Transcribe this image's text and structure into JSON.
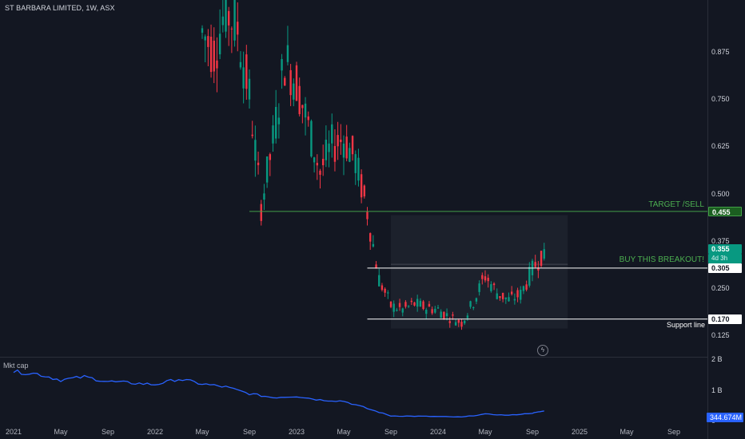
{
  "header": {
    "title": "ST BARBARA LIMITED, 1W, ASX"
  },
  "panes": {
    "market_cap_label": "Mkt cap"
  },
  "colors": {
    "background": "#131722",
    "up": "#089981",
    "down": "#f23645",
    "target_line": "#43a047",
    "white_line": "#ffffff",
    "market_cap_line": "#2962ff",
    "range_box": "#1e222d"
  },
  "chart_data": [
    {
      "type": "candlestick",
      "title": "ST BARBARA LIMITED, 1W, ASX",
      "interval": "1W",
      "yscale": "linear",
      "ylim": [
        0.07,
        1.015
      ],
      "xlim": [
        "2021-01",
        "2025-12"
      ],
      "yticks": [
        0.875,
        0.75,
        0.625,
        0.5,
        0.375,
        0.25,
        0.125
      ],
      "ytick_labels": [
        "0.875",
        "0.750",
        "0.625",
        "0.500",
        "0.375",
        "0.250",
        "0.125"
      ],
      "xticks": [
        "2021-01",
        "2021-05",
        "2021-09",
        "2022-01",
        "2022-05",
        "2022-09",
        "2023-01",
        "2023-05",
        "2023-09",
        "2024-01",
        "2024-05",
        "2024-09",
        "2025-01",
        "2025-05",
        "2025-09"
      ],
      "xtick_labels": [
        "2021",
        "May",
        "Sep",
        "2022",
        "May",
        "Sep",
        "2023",
        "May",
        "Sep",
        "2024",
        "May",
        "Sep",
        "2025",
        "May",
        "Sep"
      ],
      "weekly_closes": [
        [
          "2022-05",
          0.93
        ],
        [
          "2022-06",
          0.88
        ],
        [
          "2022-07",
          0.99
        ],
        [
          "2022-08",
          0.94
        ],
        [
          "2022-09",
          0.76
        ],
        [
          "2022-10",
          0.47
        ],
        [
          "2022-11",
          0.64
        ],
        [
          "2022-12",
          0.86
        ],
        [
          "2023-01",
          0.8
        ],
        [
          "2023-02",
          0.68
        ],
        [
          "2023-03",
          0.56
        ],
        [
          "2023-04",
          0.63
        ],
        [
          "2023-05",
          0.65
        ],
        [
          "2023-06",
          0.59
        ],
        [
          "2023-07",
          0.455
        ],
        [
          "2023-08",
          0.275
        ],
        [
          "2023-09",
          0.205
        ],
        [
          "2023-10",
          0.195
        ],
        [
          "2023-11",
          0.21
        ],
        [
          "2023-12",
          0.2
        ],
        [
          "2024-01",
          0.195
        ],
        [
          "2024-02",
          0.175
        ],
        [
          "2024-03",
          0.16
        ],
        [
          "2024-04",
          0.215
        ],
        [
          "2024-05",
          0.285
        ],
        [
          "2024-06",
          0.24
        ],
        [
          "2024-07",
          0.22
        ],
        [
          "2024-08",
          0.235
        ],
        [
          "2024-09",
          0.3
        ],
        [
          "2024-10",
          0.355
        ]
      ],
      "last_price": {
        "value": 0.355,
        "label": "0.355",
        "countdown": "4d 3h"
      },
      "lines": [
        {
          "name": "target",
          "price": 0.455,
          "label": "0.455",
          "text": "TARGET /SELL",
          "from": "2022-09"
        },
        {
          "name": "breakout",
          "price": 0.305,
          "label": "0.305",
          "text": "BUY THIS BREAKOUT!",
          "from": "2023-07"
        },
        {
          "name": "support",
          "price": 0.17,
          "label": "0.170",
          "text": "Support line",
          "from": "2023-07"
        }
      ],
      "range_box": {
        "from": "2023-09",
        "to": "2024-12",
        "low": 0.145,
        "high": 0.445,
        "mid": 0.315
      }
    },
    {
      "type": "line",
      "title": "Mkt cap",
      "ylim": [
        0.0,
        2.0
      ],
      "yticks": [
        2,
        1,
        0
      ],
      "ytick_labels": [
        "2 B",
        "1 B",
        "0"
      ],
      "last_value": "344.674M",
      "values": [
        [
          "2021-01",
          1.62
        ],
        [
          "2021-03",
          1.55
        ],
        [
          "2021-05",
          1.35
        ],
        [
          "2021-07",
          1.45
        ],
        [
          "2021-09",
          1.3
        ],
        [
          "2021-11",
          1.25
        ],
        [
          "2022-01",
          1.2
        ],
        [
          "2022-03",
          1.38
        ],
        [
          "2022-05",
          1.22
        ],
        [
          "2022-07",
          1.12
        ],
        [
          "2022-09",
          0.9
        ],
        [
          "2022-11",
          0.78
        ],
        [
          "2023-01",
          0.82
        ],
        [
          "2023-03",
          0.7
        ],
        [
          "2023-05",
          0.66
        ],
        [
          "2023-07",
          0.42
        ],
        [
          "2023-09",
          0.18
        ],
        [
          "2023-11",
          0.17
        ],
        [
          "2024-01",
          0.16
        ],
        [
          "2024-03",
          0.14
        ],
        [
          "2024-05",
          0.24
        ],
        [
          "2024-07",
          0.2
        ],
        [
          "2024-09",
          0.27
        ],
        [
          "2024-10",
          0.34
        ]
      ]
    }
  ]
}
